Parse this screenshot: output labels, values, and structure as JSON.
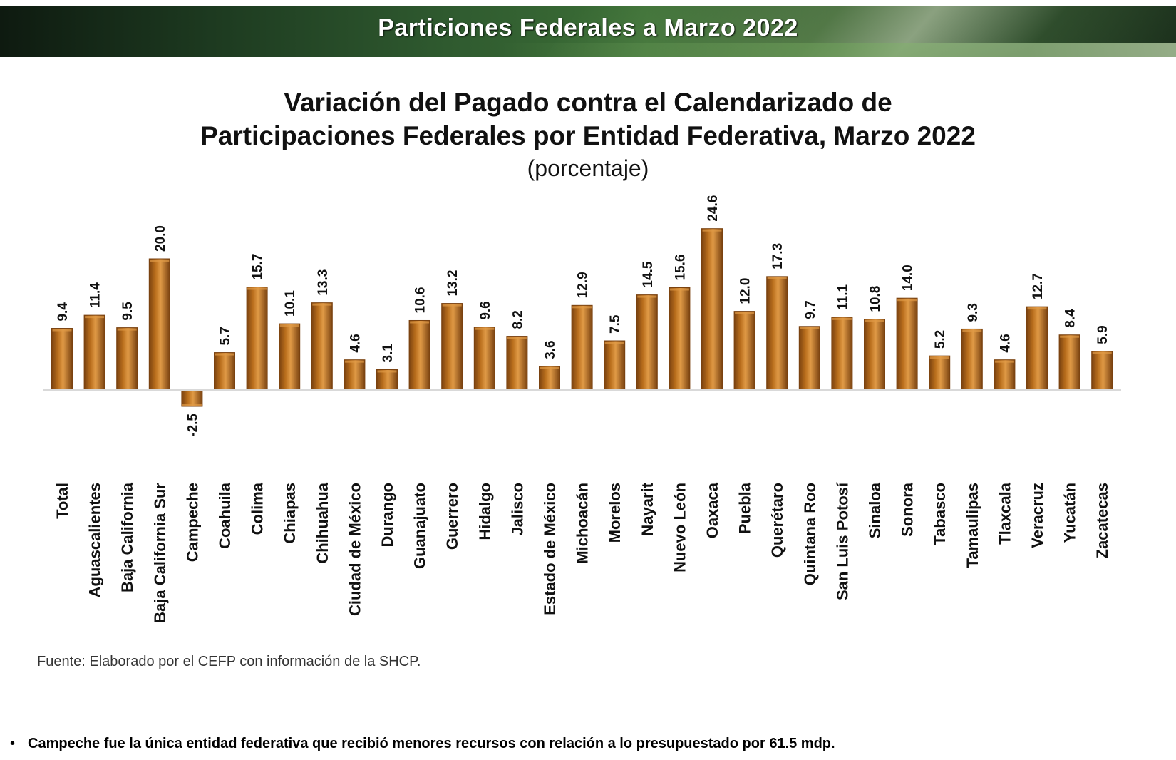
{
  "banner": {
    "title": "Particiones Federales a Marzo 2022"
  },
  "colors": {
    "bar": "#b96e1c",
    "bar_dark": "#7a4210",
    "bar_light": "#e09a46",
    "banner_green": "#2f5a2f"
  },
  "chart_data": {
    "type": "bar",
    "title_line1": "Variación del Pagado contra el Calendarizado de",
    "title_line2": "Participaciones Federales por Entidad Federativa, Marzo 2022",
    "subtitle": "(porcentaje)",
    "xlabel": "",
    "ylabel": "",
    "ylim": [
      -5,
      26
    ],
    "grid": false,
    "categories": [
      "Total",
      "Aguascalientes",
      "Baja California",
      "Baja California Sur",
      "Campeche",
      "Coahuila",
      "Colima",
      "Chiapas",
      "Chihuahua",
      "Ciudad de México",
      "Durango",
      "Guanajuato",
      "Guerrero",
      "Hidalgo",
      "Jalisco",
      "Estado de México",
      "Michoacán",
      "Morelos",
      "Nayarit",
      "Nuevo León",
      "Oaxaca",
      "Puebla",
      "Querétaro",
      "Quintana Roo",
      "San Luis Potosí",
      "Sinaloa",
      "Sonora",
      "Tabasco",
      "Tamaulipas",
      "Tlaxcala",
      "Veracruz",
      "Yucatán",
      "Zacatecas"
    ],
    "values": [
      9.4,
      11.4,
      9.5,
      20.0,
      -2.5,
      5.7,
      15.7,
      10.1,
      13.3,
      4.6,
      3.1,
      10.6,
      13.2,
      9.6,
      8.2,
      3.6,
      12.9,
      7.5,
      14.5,
      15.6,
      24.6,
      12.0,
      17.3,
      9.7,
      11.1,
      10.8,
      14.0,
      5.2,
      9.3,
      4.6,
      12.7,
      8.4,
      5.9
    ],
    "value_labels": [
      "9.4",
      "11.4",
      "9.5",
      "20.0",
      "-2.5",
      "5.7",
      "15.7",
      "10.1",
      "13.3",
      "4.6",
      "3.1",
      "10.6",
      "13.2",
      "9.6",
      "8.2",
      "3.6",
      "12.9",
      "7.5",
      "14.5",
      "15.6",
      "24.6",
      "12.0",
      "17.3",
      "9.7",
      "11.1",
      "10.8",
      "14.0",
      "5.2",
      "9.3",
      "4.6",
      "12.7",
      "8.4",
      "5.9"
    ]
  },
  "source": "Fuente: Elaborado por el CEFP con información de la SHCP.",
  "note": {
    "bullet": "•",
    "text": "Campeche fue la única entidad federativa que recibió menores recursos con relación a lo presupuestado por 61.5 mdp."
  }
}
